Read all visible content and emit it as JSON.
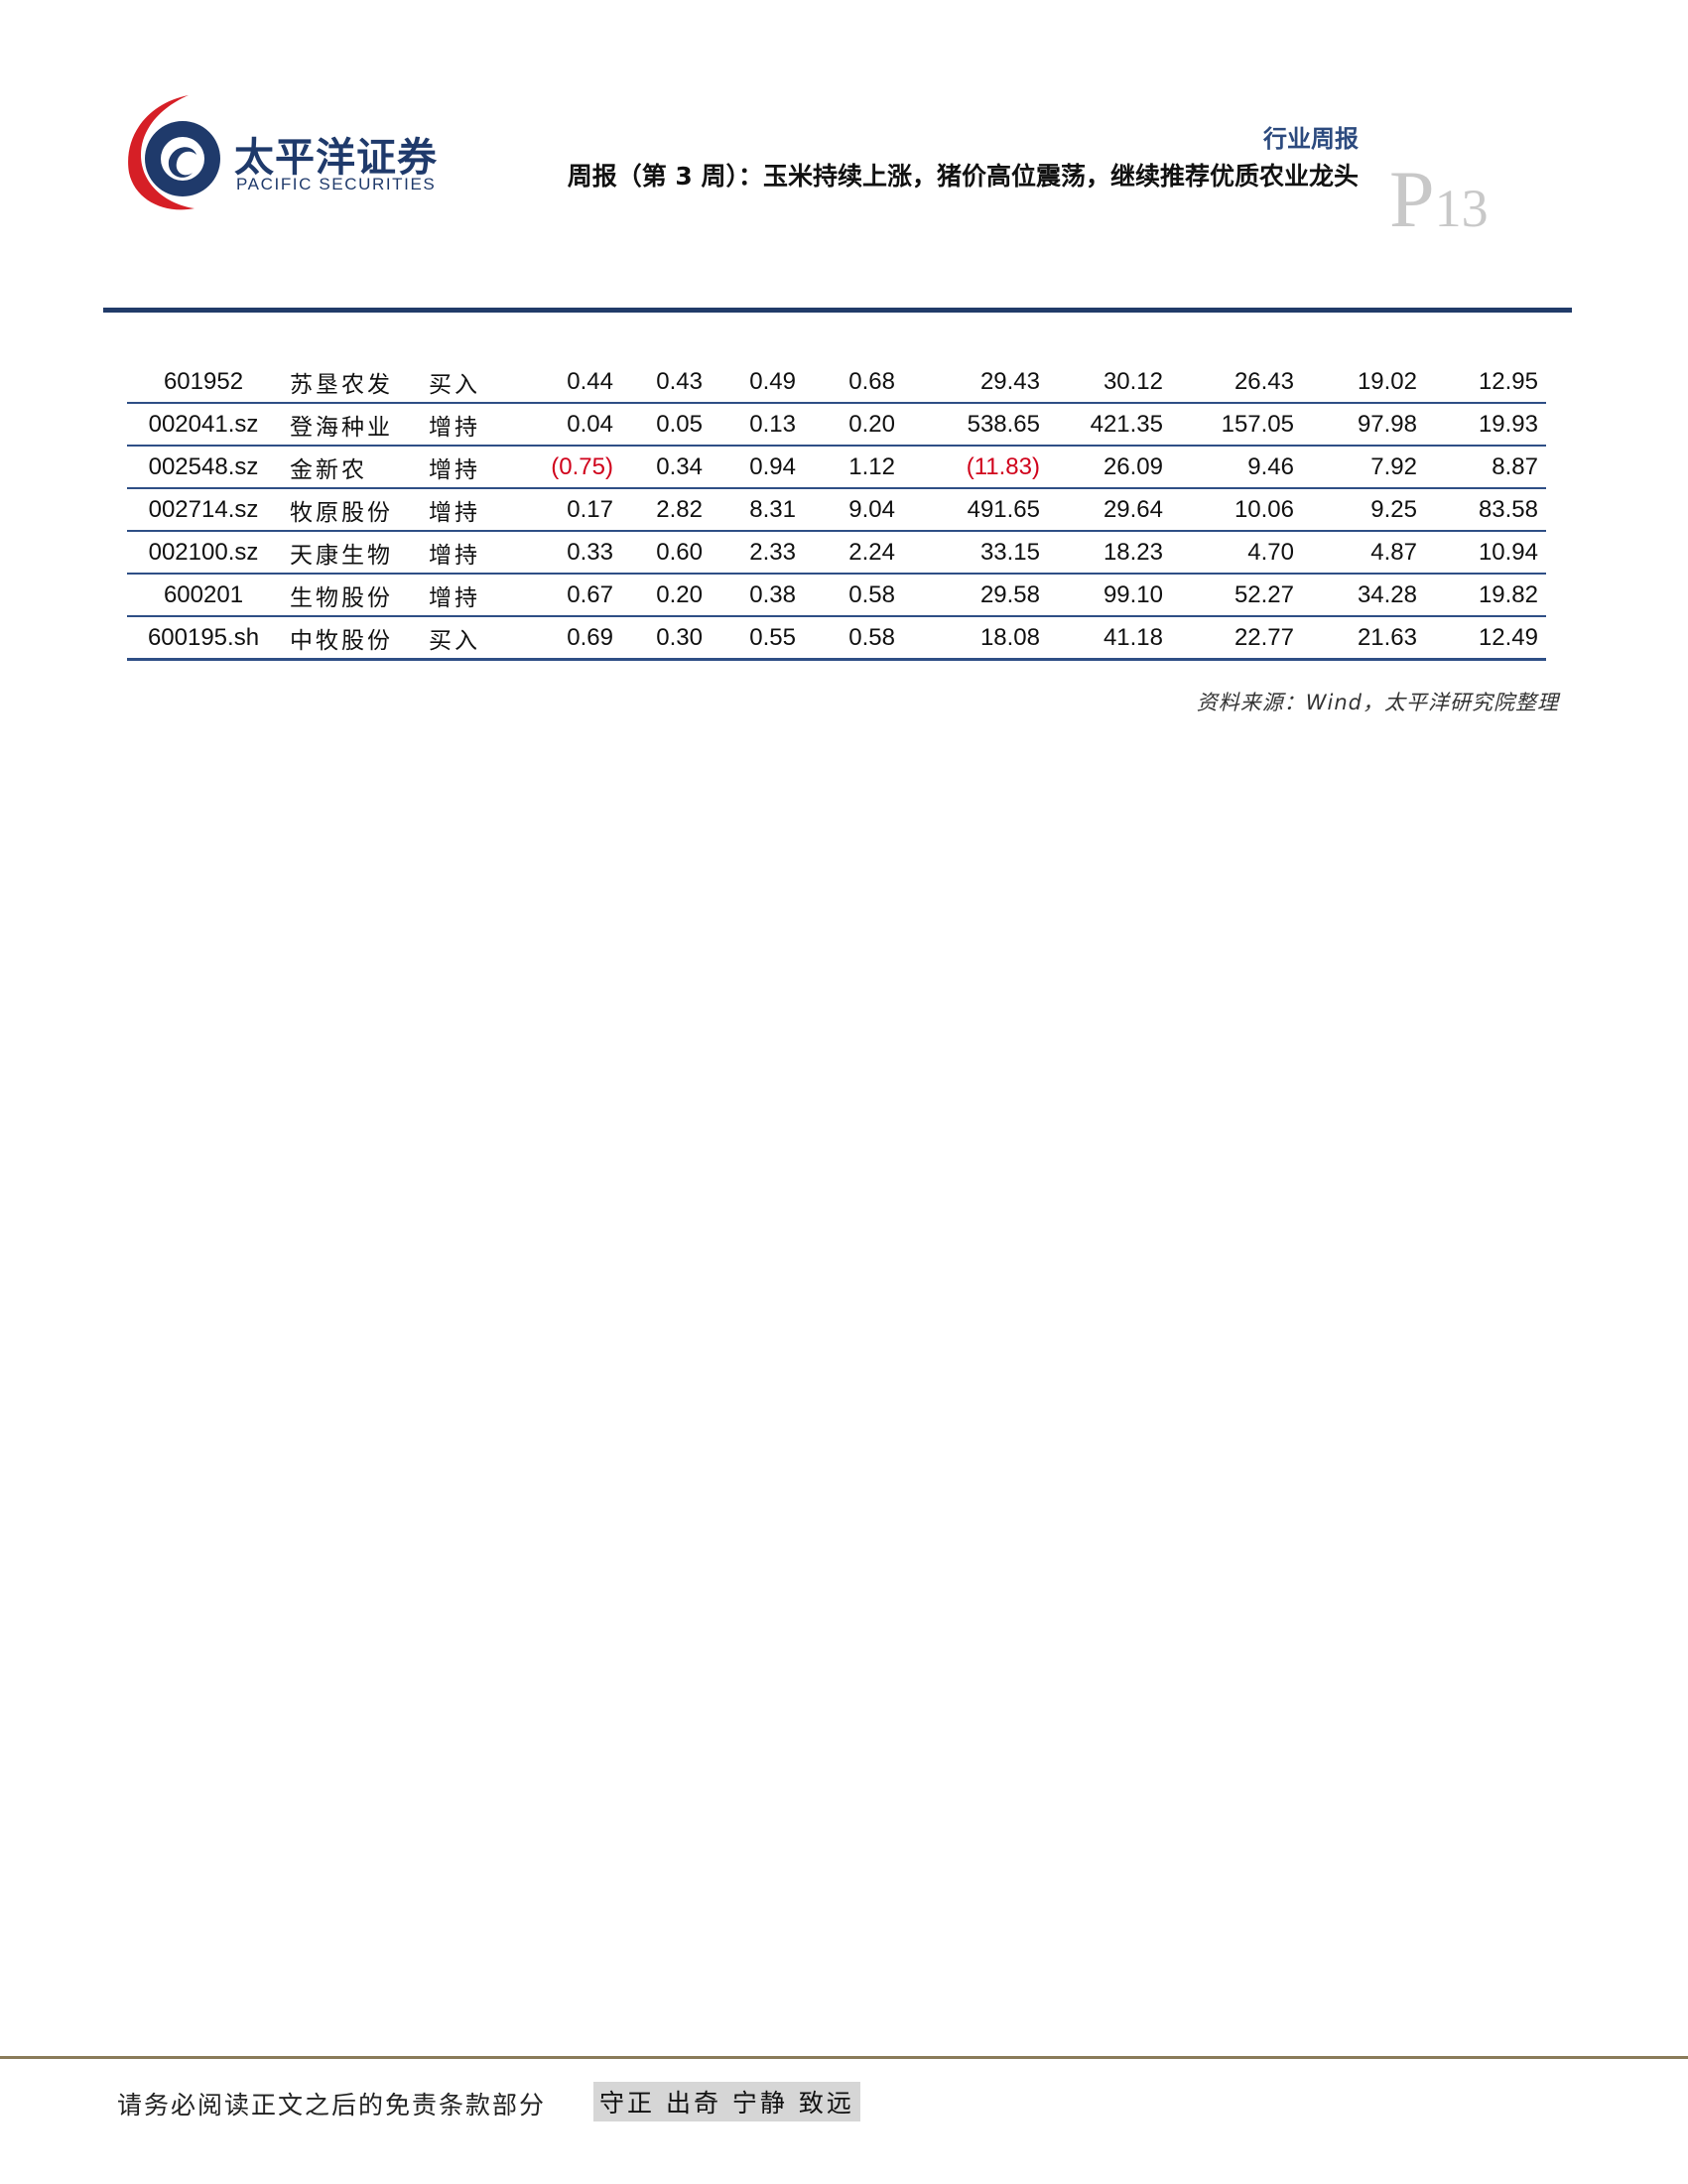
{
  "header": {
    "logo_cn": "太平洋证券",
    "logo_en": "PACIFIC SECURITIES",
    "report_type": "行业周报",
    "title": "周报（第 3 周）：玉米持续上涨，猪价高位震荡，继续推荐优质农业龙头",
    "page_prefix": "P",
    "page_number": "13"
  },
  "colors": {
    "navy": "#213b69",
    "logo_red": "#d61f26",
    "negative": "#d0021b",
    "footer_rule": "#8a7b5a"
  },
  "table": {
    "rows": [
      [
        "601952",
        "苏垦农发",
        "买入",
        "0.44",
        "0.43",
        "0.49",
        "0.68",
        "29.43",
        "30.12",
        "26.43",
        "19.02",
        "12.95"
      ],
      [
        "002041.sz",
        "登海种业",
        "增持",
        "0.04",
        "0.05",
        "0.13",
        "0.20",
        "538.65",
        "421.35",
        "157.05",
        "97.98",
        "19.93"
      ],
      [
        "002548.sz",
        "金新农",
        "增持",
        "(0.75)",
        "0.34",
        "0.94",
        "1.12",
        "(11.83)",
        "26.09",
        "9.46",
        "7.92",
        "8.87"
      ],
      [
        "002714.sz",
        "牧原股份",
        "增持",
        "0.17",
        "2.82",
        "8.31",
        "9.04",
        "491.65",
        "29.64",
        "10.06",
        "9.25",
        "83.58"
      ],
      [
        "002100.sz",
        "天康生物",
        "增持",
        "0.33",
        "0.60",
        "2.33",
        "2.24",
        "33.15",
        "18.23",
        "4.70",
        "4.87",
        "10.94"
      ],
      [
        "600201",
        "生物股份",
        "增持",
        "0.67",
        "0.20",
        "0.38",
        "0.58",
        "29.58",
        "99.10",
        "52.27",
        "34.28",
        "19.82"
      ],
      [
        "600195.sh",
        "中牧股份",
        "买入",
        "0.69",
        "0.30",
        "0.55",
        "0.58",
        "18.08",
        "41.18",
        "22.77",
        "21.63",
        "12.49"
      ]
    ]
  },
  "source_note": "资料来源：Wind，太平洋研究院整理",
  "footer": {
    "disclaimer": "请务必阅读正文之后的免责条款部分",
    "motto": "守正 出奇 宁静 致远"
  }
}
